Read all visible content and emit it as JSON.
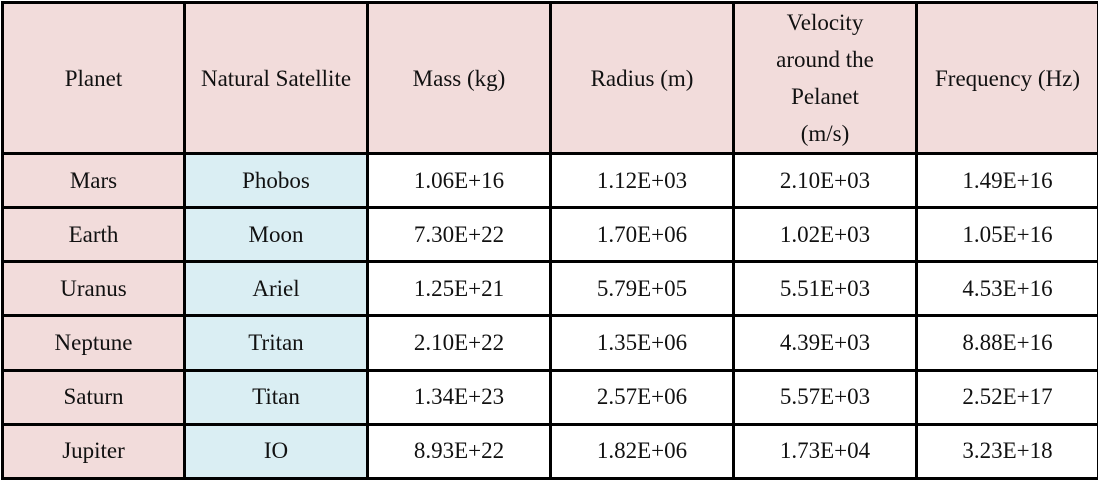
{
  "table": {
    "header": [
      "Planet",
      "Natural Satellite",
      "Mass (kg)",
      "Radius (m)",
      "Velocity around the Pelanet (m/s)",
      "Frequency (Hz)"
    ],
    "rows": [
      [
        "Mars",
        "Phobos",
        "1.06E+16",
        "1.12E+03",
        "2.10E+03",
        "1.49E+16"
      ],
      [
        "Earth",
        "Moon",
        "7.30E+22",
        "1.70E+06",
        "1.02E+03",
        "1.05E+16"
      ],
      [
        "Uranus",
        "Ariel",
        "1.25E+21",
        "5.79E+05",
        "5.51E+03",
        "4.53E+16"
      ],
      [
        "Neptune",
        "Tritan",
        "2.10E+22",
        "1.35E+06",
        "4.39E+03",
        "8.88E+16"
      ],
      [
        "Saturn",
        "Titan",
        "1.34E+23",
        "2.57E+06",
        "5.57E+03",
        "2.52E+17"
      ],
      [
        "Jupiter",
        "IO",
        "8.93E+22",
        "1.82E+06",
        "1.73E+04",
        "3.23E+18"
      ]
    ]
  }
}
